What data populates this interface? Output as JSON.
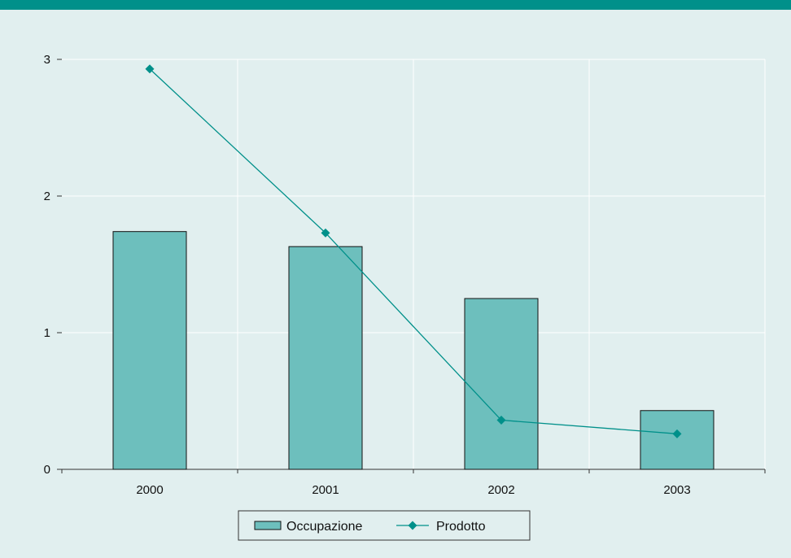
{
  "colors": {
    "background": "#e1efef",
    "header_bar": "#00908a",
    "bar_fill": "#6dbfbd",
    "line": "#00908a",
    "grid": "#ffffff"
  },
  "chart_data": {
    "type": "bar",
    "categories": [
      "2000",
      "2001",
      "2002",
      "2003"
    ],
    "series": [
      {
        "name": "Occupazione",
        "type": "bar",
        "values": [
          1.74,
          1.63,
          1.25,
          0.43
        ]
      },
      {
        "name": "Prodotto",
        "type": "line",
        "marker": "diamond",
        "values": [
          2.93,
          1.73,
          0.36,
          0.26
        ]
      }
    ],
    "ylim": [
      0,
      3
    ],
    "yticks": [
      "0",
      "1",
      "2",
      "3"
    ],
    "grid": true,
    "legend": "bottom-center"
  }
}
